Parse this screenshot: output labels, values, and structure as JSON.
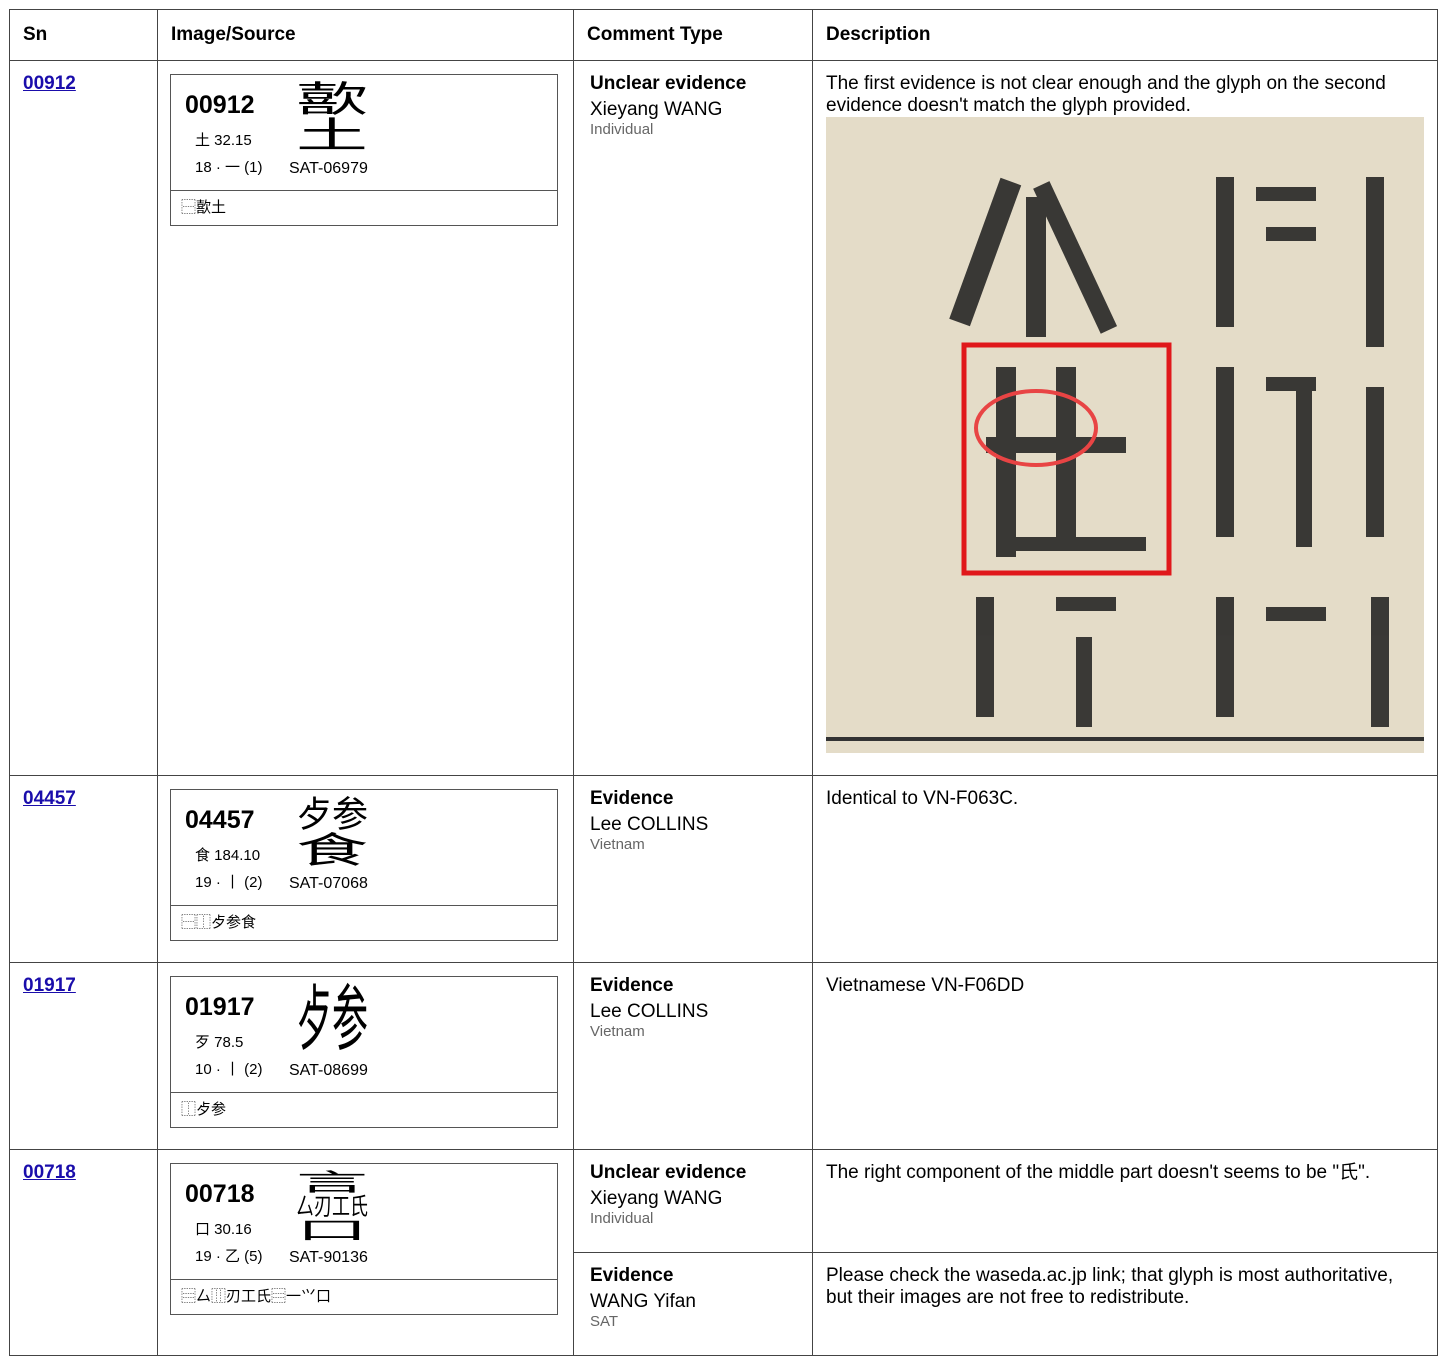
{
  "header": {
    "columns": [
      "Sn",
      "Image/Source",
      "Comment Type",
      "Description"
    ]
  },
  "rows": [
    {
      "sn": "00912",
      "card": {
        "code": "00912",
        "glyph_parts": [
          "歖",
          "土"
        ],
        "radical": "土 32.15",
        "strokes": "18 · 一 (1)",
        "source": "SAT-06979",
        "ids": "⿱歖土"
      },
      "comments": [
        {
          "type": "Unclear evidence",
          "author": "Xieyang WANG",
          "org": "Individual",
          "description": "The first evidence is not clear enough and the glyph on the second evidence doesn't match the glyph provided.",
          "has_image": true
        }
      ]
    },
    {
      "sn": "04457",
      "card": {
        "code": "04457",
        "glyph_parts": [
          "歺参",
          "食"
        ],
        "radical": "食 184.10",
        "strokes": "19 · 丨 (2)",
        "source": "SAT-07068",
        "ids": "⿱⿰歺参食"
      },
      "comments": [
        {
          "type": "Evidence",
          "author": "Lee COLLINS",
          "org": "Vietnam",
          "description": "Identical to VN-F063C."
        }
      ]
    },
    {
      "sn": "01917",
      "card": {
        "code": "01917",
        "glyph_parts": [
          "歺参"
        ],
        "radical": "歹 78.5",
        "strokes": "10 · 丨 (2)",
        "source": "SAT-08699",
        "ids": "⿰歺参"
      },
      "comments": [
        {
          "type": "Evidence",
          "author": "Lee COLLINS",
          "org": "Vietnam",
          "description": "Vietnamese VN-F06DD"
        }
      ]
    },
    {
      "sn": "00718",
      "card": {
        "code": "00718",
        "glyph_parts": [
          "言",
          "厶刃工氏",
          "口"
        ],
        "radical": "口 30.16",
        "strokes": "19 · 乙 (5)",
        "source": "SAT-90136",
        "ids": "⿳厶⿲刃工氏⿳一⺍口"
      },
      "comments": [
        {
          "type": "Unclear evidence",
          "author": "Xieyang WANG",
          "org": "Individual",
          "description": "The right component of the middle part doesn't seems to be \"氏\"."
        },
        {
          "type": "Evidence",
          "author": "WANG Yifan",
          "org": "SAT",
          "description": "Please check the waseda.ac.jp link; that glyph is most authoritative, but their images are not free to redistribute."
        }
      ]
    }
  ]
}
